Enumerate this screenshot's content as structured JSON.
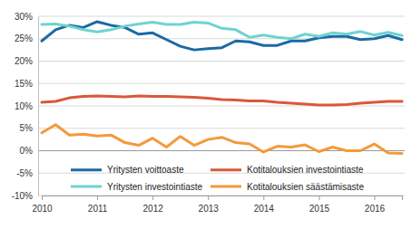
{
  "chart_data": {
    "type": "line",
    "categories": [
      "2010",
      null,
      null,
      null,
      "2011",
      null,
      null,
      null,
      "2012",
      null,
      null,
      null,
      "2013",
      null,
      null,
      null,
      "2014",
      null,
      null,
      null,
      "2015",
      null,
      null,
      null,
      "2016",
      null,
      null
    ],
    "series": [
      {
        "name": "Yritysten voittoaste",
        "color": "#1b6aa5",
        "values": [
          24.5,
          27,
          28,
          27.5,
          28.8,
          28,
          27.5,
          26,
          26.3,
          24.8,
          23.3,
          22.5,
          22.8,
          23,
          24.5,
          24.3,
          23.5,
          23.5,
          24.5,
          24.5,
          25.2,
          25.5,
          25.5,
          24.8,
          25,
          25.7,
          24.8
        ]
      },
      {
        "name": "Kotitalouksien investointiaste",
        "color": "#d9583b",
        "values": [
          10.8,
          11,
          11.8,
          12.1,
          12.2,
          12.1,
          12,
          12.2,
          12.1,
          12.1,
          12,
          11.9,
          11.7,
          11.4,
          11.3,
          11.1,
          11.1,
          10.8,
          10.6,
          10.4,
          10.2,
          10.2,
          10.3,
          10.6,
          10.8,
          11,
          11
        ]
      },
      {
        "name": "Yritysten investointiaste",
        "color": "#6fd3cf",
        "values": [
          28.2,
          28.3,
          27.8,
          27,
          26.5,
          27,
          27.8,
          28.3,
          28.7,
          28.2,
          28.2,
          28.7,
          28.5,
          27.3,
          27,
          25.3,
          25.8,
          25.3,
          25,
          26,
          25.5,
          26.3,
          26,
          26.6,
          25.8,
          26.4,
          25.7
        ]
      },
      {
        "name": "Kotitalouksien säästämisaste",
        "color": "#f39a3a",
        "values": [
          4,
          5.8,
          3.5,
          3.7,
          3.3,
          3.5,
          1.8,
          1.2,
          2.8,
          0.8,
          3.2,
          1.2,
          2.5,
          3,
          1.8,
          1.5,
          -0.3,
          1,
          0.8,
          1.3,
          -0.2,
          0.8,
          0,
          0,
          1.5,
          -0.5,
          -0.6
        ]
      }
    ],
    "ylim": [
      -10,
      30
    ],
    "yticks": [
      {
        "value": -10,
        "label": "-10%"
      },
      {
        "value": -5,
        "label": "-5%"
      },
      {
        "value": 0,
        "label": "0%"
      },
      {
        "value": 5,
        "label": "5%"
      },
      {
        "value": 10,
        "label": "10%"
      },
      {
        "value": 15,
        "label": "15%"
      },
      {
        "value": 20,
        "label": "20%"
      },
      {
        "value": 25,
        "label": "25%"
      },
      {
        "value": 30,
        "label": "30%"
      }
    ],
    "grid": true,
    "legend": "bottom"
  }
}
